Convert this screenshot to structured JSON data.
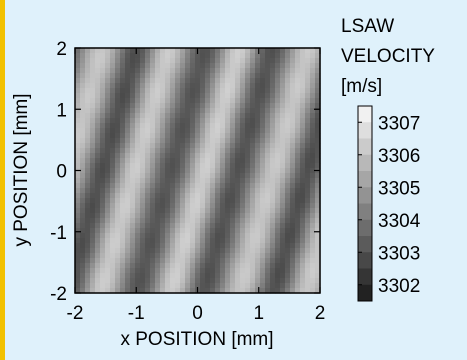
{
  "chart_data": {
    "type": "heatmap",
    "xlabel": "x POSITION [mm]",
    "ylabel": "y POSITION [mm]",
    "xlim": [
      -2,
      2
    ],
    "ylim": [
      -2,
      2
    ],
    "x_ticks": [
      "-2",
      "-1",
      "0",
      "1",
      "2"
    ],
    "y_ticks": [
      "2",
      "1",
      "0",
      "-1",
      "-2"
    ],
    "colorbar": {
      "title": [
        "LSAW",
        "VELOCITY",
        "[m/s]"
      ],
      "ticks": [
        "3307",
        "3306",
        "3305",
        "3304",
        "3303",
        "3302"
      ],
      "range": [
        3301.5,
        3307.5
      ],
      "colormap": "grayscale (dark = low, light = high)"
    },
    "field": {
      "pattern": "oblique periodic stripes",
      "mean": 3304.6,
      "amplitude": 1.6,
      "stripe_period_mm": 1.12,
      "stripe_tilt_dx_per_dy": 0.28
    }
  },
  "colors": {
    "background": "#dff1fb",
    "left_bar": "#f2c100"
  }
}
